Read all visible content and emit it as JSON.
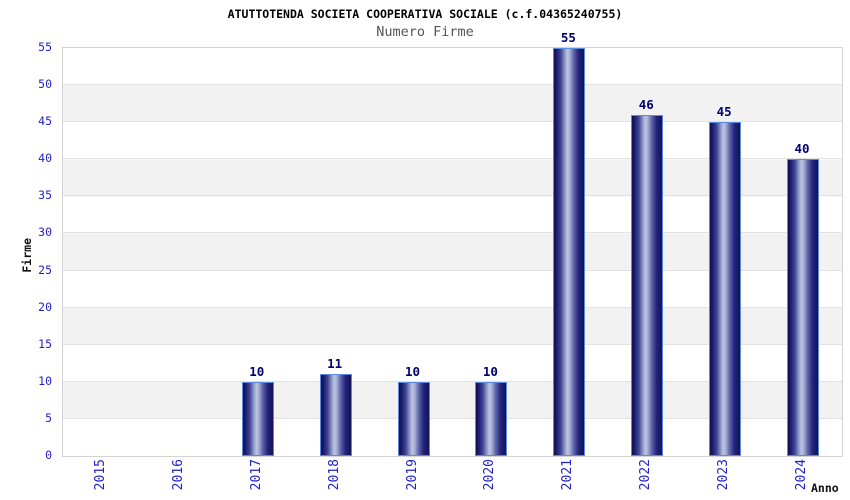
{
  "chart_data": {
    "type": "bar",
    "title": "ATUTTOTENDA SOCIETA COOPERATIVA SOCIALE (c.f.04365240755)",
    "subtitle": "Numero Firme",
    "xlabel": "Anno",
    "ylabel": "Firme",
    "categories": [
      "2015",
      "2016",
      "2017",
      "2018",
      "2019",
      "2020",
      "2021",
      "2022",
      "2023",
      "2024"
    ],
    "values": [
      0,
      0,
      10,
      11,
      10,
      10,
      55,
      46,
      45,
      40
    ],
    "ylim": [
      0,
      55
    ],
    "ytick_step": 5,
    "grid": true,
    "legend_position": "none",
    "colors": {
      "tick_label": "#2222cc",
      "value_label": "#000070",
      "bar_dark": "#16165e",
      "bar_light": "#bcc4e2",
      "bar_border": "#5c8ae0",
      "band_alt": "#f2f2f2",
      "grid_line": "#e2e2e2",
      "axis_border": "#d4d4d4",
      "title_color": "#000000",
      "subtitle_color": "#555555"
    }
  }
}
